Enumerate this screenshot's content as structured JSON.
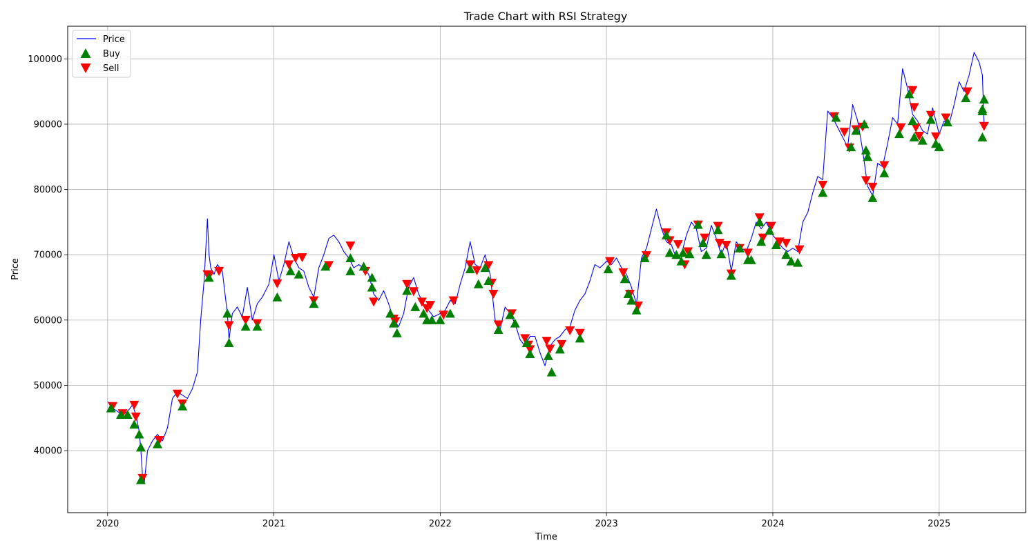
{
  "chart_data": {
    "type": "line",
    "title": "Trade Chart with RSI Strategy",
    "xlabel": "Time",
    "ylabel": "Price",
    "xlim": [
      2019.76,
      2025.52
    ],
    "ylim": [
      30500,
      105000
    ],
    "grid": true,
    "legend_position": "upper-left",
    "x_ticks": [
      2020,
      2021,
      2022,
      2023,
      2024,
      2025
    ],
    "x_tick_labels": [
      "2020",
      "2021",
      "2022",
      "2023",
      "2024",
      "2025"
    ],
    "y_ticks": [
      40000,
      50000,
      60000,
      70000,
      80000,
      90000,
      100000
    ],
    "y_tick_labels": [
      "40000",
      "50000",
      "60000",
      "70000",
      "80000",
      "90000",
      "100000"
    ],
    "legend": [
      "Price",
      "Buy",
      "Sell"
    ],
    "colors": {
      "price": "#0000ff",
      "buy": "#008000",
      "sell": "#ff0000",
      "grid": "#b0b0b0"
    },
    "price_series": {
      "name": "Price",
      "x": [
        2020.0,
        2020.03,
        2020.06,
        2020.09,
        2020.12,
        2020.15,
        2020.17,
        2020.19,
        2020.2,
        2020.21,
        2020.22,
        2020.24,
        2020.27,
        2020.3,
        2020.33,
        2020.36,
        2020.39,
        2020.42,
        2020.45,
        2020.48,
        2020.51,
        2020.54,
        2020.56,
        2020.58,
        2020.6,
        2020.61,
        2020.62,
        2020.64,
        2020.66,
        2020.69,
        2020.72,
        2020.73,
        2020.75,
        2020.78,
        2020.81,
        2020.84,
        2020.87,
        2020.9,
        2020.93,
        2020.97,
        2021.0,
        2021.03,
        2021.06,
        2021.09,
        2021.12,
        2021.15,
        2021.18,
        2021.21,
        2021.24,
        2021.27,
        2021.3,
        2021.33,
        2021.36,
        2021.39,
        2021.42,
        2021.45,
        2021.48,
        2021.51,
        2021.54,
        2021.57,
        2021.6,
        2021.63,
        2021.66,
        2021.69,
        2021.72,
        2021.75,
        2021.78,
        2021.81,
        2021.84,
        2021.87,
        2021.9,
        2021.93,
        2021.96,
        2022.0,
        2022.03,
        2022.06,
        2022.09,
        2022.12,
        2022.15,
        2022.18,
        2022.21,
        2022.24,
        2022.27,
        2022.3,
        2022.33,
        2022.36,
        2022.39,
        2022.42,
        2022.45,
        2022.48,
        2022.51,
        2022.54,
        2022.57,
        2022.6,
        2022.63,
        2022.66,
        2022.69,
        2022.72,
        2022.75,
        2022.78,
        2022.81,
        2022.84,
        2022.87,
        2022.9,
        2022.93,
        2022.96,
        2023.0,
        2023.03,
        2023.06,
        2023.09,
        2023.12,
        2023.15,
        2023.18,
        2023.21,
        2023.24,
        2023.27,
        2023.3,
        2023.33,
        2023.36,
        2023.39,
        2023.42,
        2023.45,
        2023.48,
        2023.51,
        2023.54,
        2023.57,
        2023.6,
        2023.63,
        2023.66,
        2023.69,
        2023.72,
        2023.75,
        2023.78,
        2023.81,
        2023.84,
        2023.87,
        2023.9,
        2023.93,
        2023.96,
        2024.0,
        2024.03,
        2024.06,
        2024.09,
        2024.12,
        2024.15,
        2024.18,
        2024.21,
        2024.24,
        2024.27,
        2024.3,
        2024.33,
        2024.36,
        2024.39,
        2024.42,
        2024.45,
        2024.48,
        2024.51,
        2024.54,
        2024.57,
        2024.6,
        2024.63,
        2024.66,
        2024.69,
        2024.72,
        2024.75,
        2024.78,
        2024.81,
        2024.84,
        2024.87,
        2024.9,
        2024.93,
        2024.96,
        2025.0,
        2025.03,
        2025.06,
        2025.09,
        2025.12,
        2025.15,
        2025.18,
        2025.21,
        2025.24,
        2025.26,
        2025.27
      ],
      "y": [
        47500,
        46500,
        46000,
        45500,
        46000,
        47000,
        45500,
        43000,
        40000,
        36000,
        35000,
        40000,
        41500,
        42500,
        41500,
        43500,
        48000,
        49000,
        48500,
        48000,
        49500,
        52000,
        60000,
        66000,
        75500,
        70000,
        68000,
        67000,
        68500,
        67500,
        61000,
        57000,
        61000,
        62000,
        60500,
        65000,
        60000,
        62500,
        63500,
        65500,
        70000,
        66000,
        68500,
        72000,
        69500,
        68000,
        67500,
        65000,
        63500,
        68000,
        70000,
        72500,
        73000,
        72000,
        70500,
        69500,
        68000,
        68500,
        68000,
        67000,
        64000,
        63000,
        64500,
        62500,
        60000,
        59000,
        61000,
        65000,
        66500,
        64000,
        62500,
        61500,
        60500,
        61000,
        61500,
        63000,
        62500,
        65500,
        68000,
        72000,
        68500,
        68000,
        70000,
        67000,
        60000,
        58500,
        62000,
        61000,
        59500,
        57000,
        56000,
        57500,
        57500,
        55000,
        53000,
        56000,
        57000,
        57500,
        58500,
        59000,
        61500,
        63000,
        64000,
        66000,
        68500,
        68000,
        69000,
        68500,
        69500,
        68000,
        67000,
        65000,
        62500,
        69500,
        71000,
        74000,
        77000,
        74000,
        72000,
        71500,
        69500,
        70000,
        73000,
        75000,
        74000,
        70500,
        71000,
        74500,
        72500,
        70000,
        72000,
        67500,
        72000,
        71000,
        70500,
        72500,
        75000,
        74000,
        75000,
        73000,
        72000,
        71000,
        70500,
        71000,
        70500,
        75000,
        76500,
        79500,
        82000,
        81500,
        92000,
        91000,
        89500,
        88000,
        86500,
        93000,
        90500,
        86000,
        80500,
        79000,
        84000,
        83500,
        87000,
        91000,
        90000,
        98500,
        95500,
        91500,
        90500,
        89000,
        88500,
        92500,
        88500,
        90500,
        90000,
        93000,
        96500,
        95000,
        97500,
        101000,
        99500,
        97500,
        90000
      ]
    },
    "buy_signals": {
      "name": "Buy",
      "x": [
        2020.02,
        2020.08,
        2020.12,
        2020.16,
        2020.19,
        2020.2,
        2020.2,
        2020.3,
        2020.45,
        2020.61,
        2020.72,
        2020.73,
        2020.83,
        2020.9,
        2021.02,
        2021.1,
        2021.15,
        2021.24,
        2021.31,
        2021.46,
        2021.46,
        2021.54,
        2021.59,
        2021.59,
        2021.7,
        2021.72,
        2021.74,
        2021.8,
        2021.85,
        2021.9,
        2021.92,
        2021.95,
        2022.0,
        2022.06,
        2022.18,
        2022.23,
        2022.27,
        2022.29,
        2022.35,
        2022.42,
        2022.45,
        2022.52,
        2022.54,
        2022.65,
        2022.67,
        2022.72,
        2022.84,
        2023.01,
        2023.11,
        2023.13,
        2023.15,
        2023.18,
        2023.23,
        2023.36,
        2023.38,
        2023.42,
        2023.45,
        2023.46,
        2023.5,
        2023.55,
        2023.58,
        2023.6,
        2023.67,
        2023.69,
        2023.75,
        2023.8,
        2023.85,
        2023.87,
        2023.92,
        2023.93,
        2023.98,
        2024.02,
        2024.08,
        2024.11,
        2024.15,
        2024.3,
        2024.38,
        2024.47,
        2024.5,
        2024.55,
        2024.56,
        2024.57,
        2024.6,
        2024.67,
        2024.76,
        2024.82,
        2024.84,
        2024.85,
        2024.9,
        2024.95,
        2024.98,
        2025.0,
        2025.05,
        2025.16,
        2025.26,
        2025.26,
        2025.27,
        2025.26
      ],
      "y": [
        46500,
        45500,
        45500,
        44000,
        42500,
        40500,
        35500,
        41000,
        46800,
        66500,
        61000,
        56500,
        59000,
        59000,
        63500,
        67500,
        67000,
        62500,
        68200,
        67500,
        69500,
        68200,
        65000,
        66500,
        61000,
        59500,
        58000,
        64500,
        62000,
        61000,
        60000,
        60000,
        60000,
        61000,
        67800,
        65500,
        68000,
        66000,
        58500,
        60800,
        59500,
        56500,
        54800,
        54500,
        52000,
        55500,
        57200,
        67800,
        66300,
        64000,
        63000,
        61500,
        69500,
        73000,
        70300,
        70000,
        69000,
        70300,
        70100,
        74600,
        71800,
        70000,
        73800,
        70100,
        66800,
        71000,
        69200,
        69200,
        75000,
        72000,
        73700,
        71500,
        70000,
        69000,
        68800,
        79500,
        91000,
        86500,
        89000,
        90000,
        86000,
        85000,
        78700,
        82500,
        88500,
        94600,
        90500,
        88000,
        87500,
        90700,
        87000,
        86500,
        90300,
        94000,
        92000,
        92300,
        93800,
        88000
      ]
    },
    "sell_signals": {
      "name": "Sell",
      "x": [
        2020.03,
        2020.09,
        2020.16,
        2020.17,
        2020.21,
        2020.31,
        2020.42,
        2020.45,
        2020.6,
        2020.61,
        2020.67,
        2020.73,
        2020.83,
        2020.9,
        2021.02,
        2021.09,
        2021.13,
        2021.17,
        2021.24,
        2021.33,
        2021.46,
        2021.55,
        2021.6,
        2021.72,
        2021.73,
        2021.8,
        2021.84,
        2021.89,
        2021.92,
        2021.94,
        2022.02,
        2022.08,
        2022.18,
        2022.22,
        2022.29,
        2022.31,
        2022.32,
        2022.35,
        2022.43,
        2022.51,
        2022.53,
        2022.54,
        2022.64,
        2022.66,
        2022.73,
        2022.78,
        2022.84,
        2023.02,
        2023.1,
        2023.14,
        2023.19,
        2023.24,
        2023.36,
        2023.38,
        2023.43,
        2023.47,
        2023.49,
        2023.55,
        2023.59,
        2023.67,
        2023.68,
        2023.72,
        2023.75,
        2023.8,
        2023.85,
        2023.92,
        2023.94,
        2023.99,
        2024.04,
        2024.08,
        2024.16,
        2024.3,
        2024.37,
        2024.43,
        2024.46,
        2024.5,
        2024.54,
        2024.56,
        2024.6,
        2024.67,
        2024.77,
        2024.84,
        2024.85,
        2024.86,
        2024.88,
        2024.95,
        2024.98,
        2025.04,
        2025.17,
        2025.27
      ],
      "y": [
        46800,
        45700,
        47000,
        45200,
        35800,
        41600,
        48700,
        47200,
        67000,
        66800,
        67500,
        59200,
        60000,
        59500,
        65600,
        68500,
        69500,
        69600,
        63000,
        68400,
        71400,
        67500,
        62800,
        60200,
        59800,
        65500,
        64400,
        62800,
        61800,
        62300,
        60800,
        63000,
        68500,
        67600,
        68400,
        65700,
        64000,
        59300,
        61000,
        57200,
        56200,
        55500,
        56800,
        55600,
        56300,
        58400,
        58000,
        69000,
        67300,
        64000,
        62200,
        69900,
        73400,
        72200,
        71600,
        68500,
        70500,
        74600,
        72600,
        74400,
        71800,
        71500,
        67100,
        71000,
        70300,
        75700,
        72600,
        74400,
        72000,
        71800,
        70800,
        80700,
        91200,
        88800,
        86400,
        89200,
        89600,
        81400,
        80400,
        83700,
        89500,
        95200,
        92600,
        89500,
        88200,
        91400,
        88100,
        91000,
        95000,
        89700
      ]
    }
  }
}
